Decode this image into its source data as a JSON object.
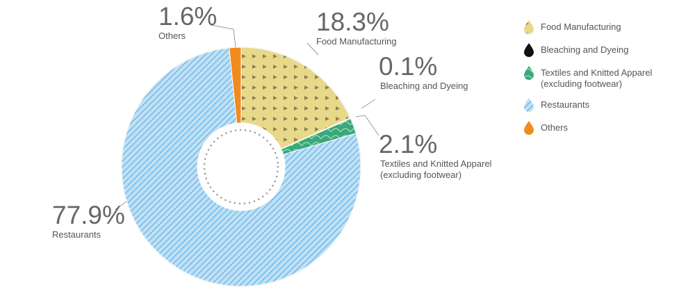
{
  "chart_data": {
    "type": "pie",
    "donut": true,
    "slices": [
      {
        "label": "Food Manufacturing",
        "value": 18.3,
        "display": "18.3%",
        "color": "#e8d98a",
        "pattern": "triangles",
        "legend": [
          "Food Manufacturing"
        ],
        "label_lines": [
          "Food Manufacturing"
        ]
      },
      {
        "label": "Bleaching and Dyeing",
        "value": 0.1,
        "display": "0.1%",
        "color": "#111111",
        "pattern": "solid",
        "legend": [
          "Bleaching and Dyeing"
        ],
        "label_lines": [
          "Bleaching and Dyeing"
        ]
      },
      {
        "label": "Textiles and Knitted Apparel (excluding footwear)",
        "value": 2.1,
        "display": "2.1%",
        "color": "#3aa87a",
        "pattern": "scales",
        "legend": [
          "Textiles and Knitted Apparel",
          "(excluding footwear)"
        ],
        "label_lines": [
          "Textiles and Knitted Apparel",
          "(excluding footwear)"
        ]
      },
      {
        "label": "Restaurants",
        "value": 77.9,
        "display": "77.9%",
        "color": "#a8d4f0",
        "pattern": "diagonal-stripes",
        "legend": [
          "Restaurants"
        ],
        "label_lines": [
          "Restaurants"
        ]
      },
      {
        "label": "Others",
        "value": 1.6,
        "display": "1.6%",
        "color": "#f08c1e",
        "pattern": "solid",
        "legend": [
          "Others"
        ],
        "label_lines": [
          "Others"
        ]
      }
    ],
    "start_angle_deg": 0,
    "direction": "clockwise",
    "legend_position": "right"
  }
}
